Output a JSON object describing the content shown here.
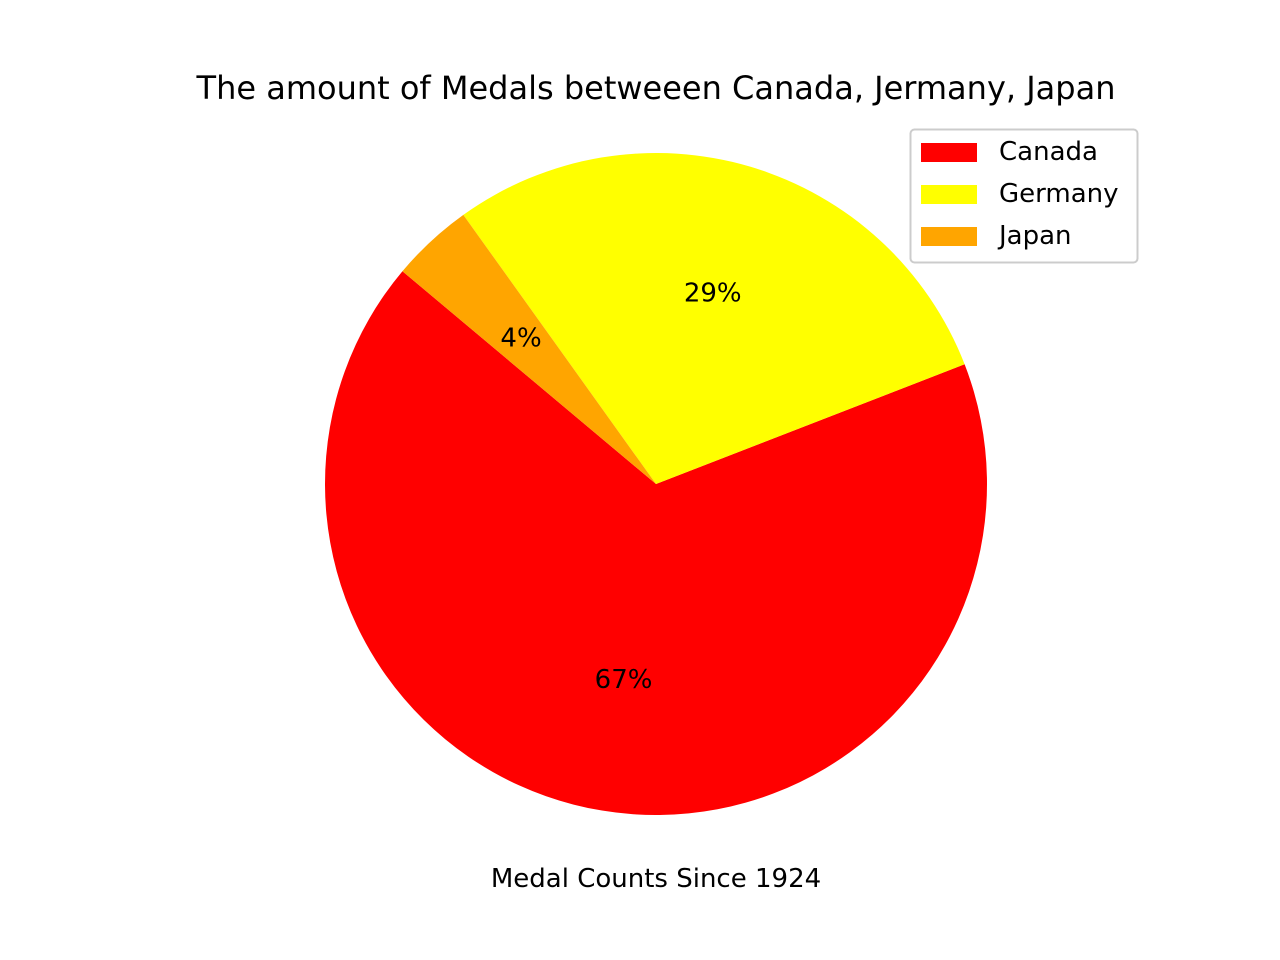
{
  "chart_data": {
    "type": "pie",
    "title": "The amount of Medals betweeen Canada, Jermany, Japan",
    "xlabel": "Medal Counts Since 1924",
    "categories": [
      "Canada",
      "Germany",
      "Japan"
    ],
    "values": [
      67,
      29,
      4
    ],
    "value_labels": [
      "67%",
      "29%",
      "4%"
    ],
    "colors": [
      "#ff0000",
      "#ffff00",
      "#ffa500"
    ],
    "start_angle_deg": 140,
    "direction": "counterclockwise",
    "legend_placement": "top-right"
  }
}
